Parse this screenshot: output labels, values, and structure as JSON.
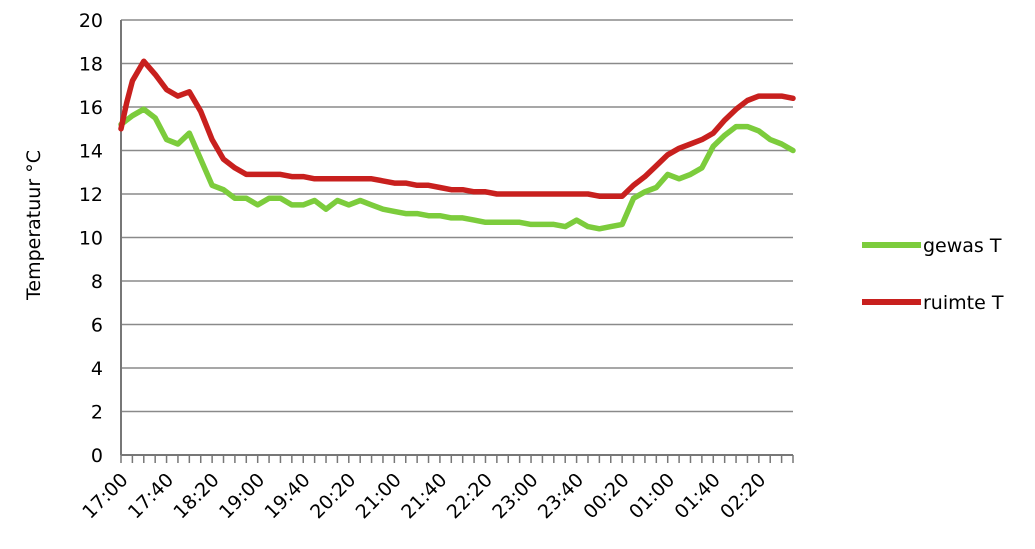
{
  "chart_data": {
    "type": "line",
    "title": "",
    "xlabel": "",
    "ylabel": "Temperatuur °C",
    "ylim": [
      0,
      20
    ],
    "yticks": [
      0,
      2,
      4,
      6,
      8,
      10,
      12,
      14,
      16,
      18,
      20
    ],
    "grid": "horizontal",
    "legend_position": "right",
    "x_tick_labels": [
      "17:00",
      "17:40",
      "18:20",
      "19:00",
      "19:40",
      "20:20",
      "21:00",
      "21:40",
      "22:20",
      "23:00",
      "23:40",
      "00:20",
      "01:00",
      "01:40",
      "02:20"
    ],
    "x_minutes_start": "17:00",
    "x_step_minutes": 5,
    "x_points": 118,
    "series": [
      {
        "name": "gewas T",
        "color": "#7ccc3c",
        "points": [
          [
            0,
            15.2
          ],
          [
            2,
            15.6
          ],
          [
            4,
            15.9
          ],
          [
            6,
            15.5
          ],
          [
            8,
            14.5
          ],
          [
            10,
            14.3
          ],
          [
            12,
            14.8
          ],
          [
            14,
            13.6
          ],
          [
            16,
            12.4
          ],
          [
            18,
            12.2
          ],
          [
            20,
            11.8
          ],
          [
            22,
            11.8
          ],
          [
            24,
            11.5
          ],
          [
            26,
            11.8
          ],
          [
            28,
            11.8
          ],
          [
            30,
            11.5
          ],
          [
            32,
            11.5
          ],
          [
            34,
            11.7
          ],
          [
            36,
            11.3
          ],
          [
            38,
            11.7
          ],
          [
            40,
            11.5
          ],
          [
            42,
            11.7
          ],
          [
            44,
            11.5
          ],
          [
            46,
            11.3
          ],
          [
            48,
            11.2
          ],
          [
            50,
            11.1
          ],
          [
            52,
            11.1
          ],
          [
            54,
            11.0
          ],
          [
            56,
            11.0
          ],
          [
            58,
            10.9
          ],
          [
            60,
            10.9
          ],
          [
            62,
            10.8
          ],
          [
            64,
            10.7
          ],
          [
            66,
            10.7
          ],
          [
            68,
            10.7
          ],
          [
            70,
            10.7
          ],
          [
            72,
            10.6
          ],
          [
            74,
            10.6
          ],
          [
            76,
            10.6
          ],
          [
            78,
            10.5
          ],
          [
            80,
            10.8
          ],
          [
            82,
            10.5
          ],
          [
            84,
            10.4
          ],
          [
            86,
            10.5
          ],
          [
            88,
            10.6
          ],
          [
            90,
            11.8
          ],
          [
            92,
            12.1
          ],
          [
            94,
            12.3
          ],
          [
            96,
            12.9
          ],
          [
            98,
            12.7
          ],
          [
            100,
            12.9
          ],
          [
            102,
            13.2
          ],
          [
            104,
            14.2
          ],
          [
            106,
            14.7
          ],
          [
            108,
            15.1
          ],
          [
            110,
            15.1
          ],
          [
            112,
            14.9
          ],
          [
            114,
            14.5
          ],
          [
            116,
            14.3
          ],
          [
            118,
            14.0
          ]
        ]
      },
      {
        "name": "ruimte T",
        "color": "#c8201e",
        "points": [
          [
            0,
            15.0
          ],
          [
            1,
            16.2
          ],
          [
            2,
            17.2
          ],
          [
            4,
            18.1
          ],
          [
            6,
            17.5
          ],
          [
            8,
            16.8
          ],
          [
            10,
            16.5
          ],
          [
            12,
            16.7
          ],
          [
            14,
            15.8
          ],
          [
            16,
            14.5
          ],
          [
            18,
            13.6
          ],
          [
            20,
            13.2
          ],
          [
            22,
            12.9
          ],
          [
            24,
            12.9
          ],
          [
            26,
            12.9
          ],
          [
            28,
            12.9
          ],
          [
            30,
            12.8
          ],
          [
            32,
            12.8
          ],
          [
            34,
            12.7
          ],
          [
            36,
            12.7
          ],
          [
            38,
            12.7
          ],
          [
            40,
            12.7
          ],
          [
            42,
            12.7
          ],
          [
            44,
            12.7
          ],
          [
            46,
            12.6
          ],
          [
            48,
            12.5
          ],
          [
            50,
            12.5
          ],
          [
            52,
            12.4
          ],
          [
            54,
            12.4
          ],
          [
            56,
            12.3
          ],
          [
            58,
            12.2
          ],
          [
            60,
            12.2
          ],
          [
            62,
            12.1
          ],
          [
            64,
            12.1
          ],
          [
            66,
            12.0
          ],
          [
            68,
            12.0
          ],
          [
            70,
            12.0
          ],
          [
            72,
            12.0
          ],
          [
            74,
            12.0
          ],
          [
            76,
            12.0
          ],
          [
            78,
            12.0
          ],
          [
            80,
            12.0
          ],
          [
            82,
            12.0
          ],
          [
            84,
            11.9
          ],
          [
            86,
            11.9
          ],
          [
            88,
            11.9
          ],
          [
            90,
            12.4
          ],
          [
            92,
            12.8
          ],
          [
            94,
            13.3
          ],
          [
            96,
            13.8
          ],
          [
            98,
            14.1
          ],
          [
            100,
            14.3
          ],
          [
            102,
            14.5
          ],
          [
            104,
            14.8
          ],
          [
            106,
            15.4
          ],
          [
            108,
            15.9
          ],
          [
            110,
            16.3
          ],
          [
            112,
            16.5
          ],
          [
            114,
            16.5
          ],
          [
            116,
            16.5
          ],
          [
            118,
            16.4
          ]
        ]
      }
    ]
  }
}
